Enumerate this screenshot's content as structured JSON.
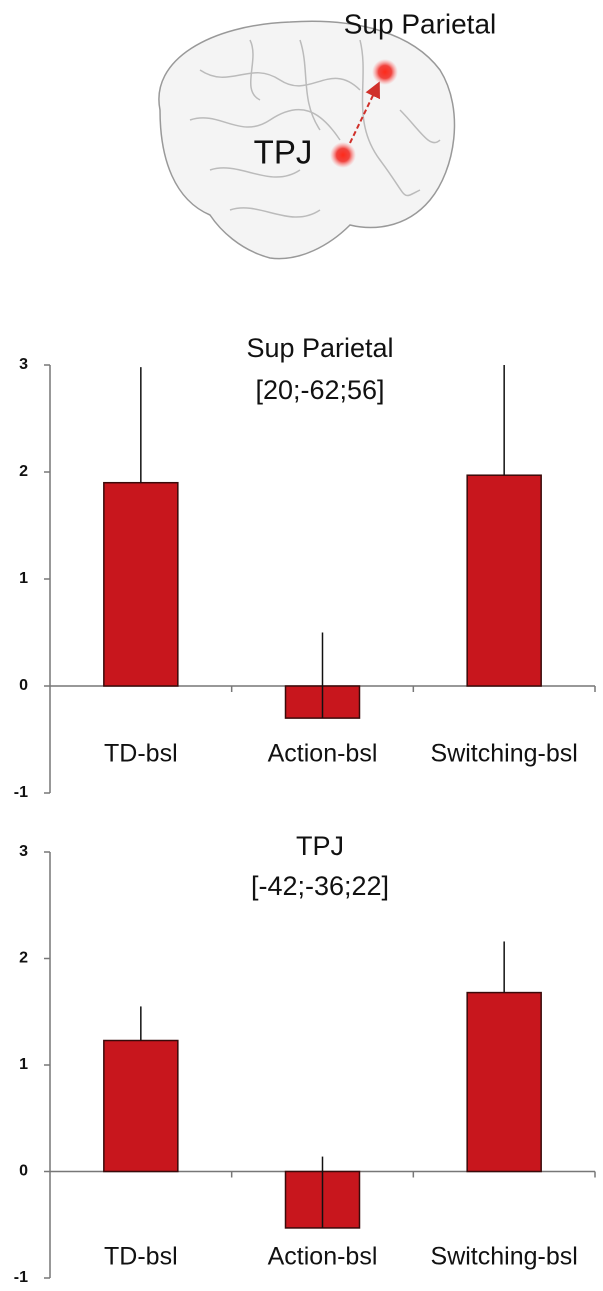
{
  "brain": {
    "labels": [
      "Sup Parietal",
      "TPJ"
    ]
  },
  "chart_data": [
    {
      "type": "bar",
      "title": "Sup Parietal",
      "subtitle": "[20;-62;56]",
      "categories": [
        "TD-bsl",
        "Action-bsl",
        "Switching-bsl"
      ],
      "values": [
        1.9,
        -0.3,
        1.97
      ],
      "errors": [
        1.08,
        0.8,
        1.03
      ],
      "color": "#c8161d",
      "ylim": [
        -1,
        3
      ],
      "yticks": [
        -1,
        0,
        1,
        2,
        3
      ]
    },
    {
      "type": "bar",
      "title": "TPJ",
      "subtitle": "[-42;-36;22]",
      "categories": [
        "TD-bsl",
        "Action-bsl",
        "Switching-bsl"
      ],
      "values": [
        1.23,
        -0.53,
        1.68
      ],
      "errors": [
        0.32,
        0.67,
        0.48
      ],
      "color": "#c8161d",
      "ylim": [
        -1,
        3
      ],
      "yticks": [
        -1,
        0,
        1,
        2,
        3
      ]
    }
  ]
}
